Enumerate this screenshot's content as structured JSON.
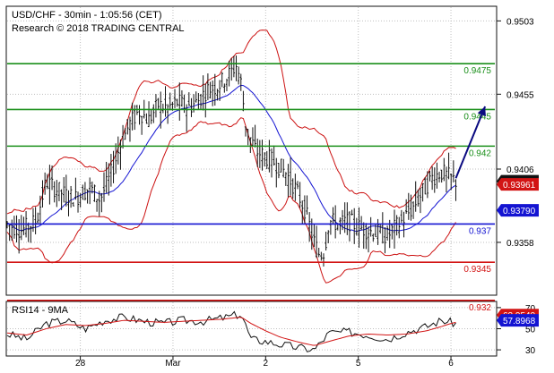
{
  "header": {
    "line1": "USD/CHF - 30min - 1:05:56 (CET)",
    "line2": "Research © 2018 TRADING CENTRAL"
  },
  "chart_data": [
    {
      "type": "candlestick",
      "title": "USD/CHF - 30min - 1:05:56 (CET)",
      "ylim": [
        0.9324,
        0.9512
      ],
      "y_ticks": [
        "0.9503",
        "0.9455",
        "0.9406",
        "0.9358"
      ],
      "x_tick_labels": [
        "28",
        "Mar",
        "2",
        "5",
        "6"
      ],
      "x_ticks": [
        15,
        34,
        53,
        72,
        91
      ],
      "x_range": [
        0,
        100
      ],
      "grid": true,
      "price_path": [
        [
          0,
          0.937
        ],
        [
          3,
          0.9366
        ],
        [
          6,
          0.9372
        ],
        [
          8,
          0.9398
        ],
        [
          10,
          0.9393
        ],
        [
          12,
          0.9389
        ],
        [
          14,
          0.9387
        ],
        [
          17,
          0.9394
        ],
        [
          19,
          0.9386
        ],
        [
          21,
          0.94
        ],
        [
          23,
          0.942
        ],
        [
          25,
          0.9435
        ],
        [
          27,
          0.9444
        ],
        [
          29,
          0.9438
        ],
        [
          31,
          0.9448
        ],
        [
          33,
          0.9446
        ],
        [
          35,
          0.945
        ],
        [
          37,
          0.9446
        ],
        [
          39,
          0.945
        ],
        [
          41,
          0.9458
        ],
        [
          43,
          0.946
        ],
        [
          45,
          0.9466
        ],
        [
          47,
          0.9474
        ],
        [
          48,
          0.9462
        ],
        [
          49,
          0.9432
        ],
        [
          51,
          0.9418
        ],
        [
          53,
          0.9414
        ],
        [
          55,
          0.941
        ],
        [
          57,
          0.9404
        ],
        [
          59,
          0.9394
        ],
        [
          61,
          0.938
        ],
        [
          63,
          0.9358
        ],
        [
          64,
          0.935
        ],
        [
          65,
          0.9352
        ],
        [
          66,
          0.9372
        ],
        [
          68,
          0.937
        ],
        [
          70,
          0.9372
        ],
        [
          72,
          0.9368
        ],
        [
          74,
          0.9366
        ],
        [
          76,
          0.9364
        ],
        [
          78,
          0.9362
        ],
        [
          79,
          0.9366
        ],
        [
          81,
          0.9372
        ],
        [
          83,
          0.938
        ],
        [
          85,
          0.939
        ],
        [
          87,
          0.94
        ],
        [
          89,
          0.9404
        ],
        [
          91,
          0.94
        ],
        [
          92,
          0.9398
        ]
      ],
      "projection": {
        "from": [
          92,
          0.94
        ],
        "to": [
          98,
          0.9447
        ]
      },
      "levels": [
        {
          "label": "0.9475",
          "value": 0.9475,
          "color": "#1a8f1a"
        },
        {
          "label": "0.9445",
          "value": 0.9445,
          "color": "#1a8f1a"
        },
        {
          "label": "0.942",
          "value": 0.9421,
          "color": "#1a8f1a"
        },
        {
          "label": "0.937",
          "value": 0.937,
          "color": "#1414d2"
        },
        {
          "label": "0.9345",
          "value": 0.9345,
          "color": "#d21414"
        },
        {
          "label": "0.932",
          "value": 0.932,
          "color": "#d21414"
        }
      ],
      "price_badges": [
        {
          "label": "0.93981",
          "value": 0.9398,
          "color": "#111111"
        },
        {
          "label": "0.93961",
          "value": 0.9396,
          "color": "#d21414"
        },
        {
          "label": "0.93790",
          "value": 0.9379,
          "color": "#1414d2"
        }
      ]
    },
    {
      "type": "line",
      "title": "RSI14 - 9MA",
      "ylim": [
        25,
        75
      ],
      "y_ticks": [
        "70",
        "50",
        "30"
      ],
      "series": [
        {
          "name": "RSI14",
          "color": "#111111",
          "values": [
            [
              0,
              45
            ],
            [
              4,
              40
            ],
            [
              8,
              55
            ],
            [
              12,
              58
            ],
            [
              16,
              50
            ],
            [
              20,
              58
            ],
            [
              24,
              61
            ],
            [
              28,
              57
            ],
            [
              32,
              55
            ],
            [
              36,
              58
            ],
            [
              40,
              57
            ],
            [
              44,
              60
            ],
            [
              48,
              64
            ],
            [
              50,
              40
            ],
            [
              53,
              38
            ],
            [
              56,
              35
            ],
            [
              60,
              32
            ],
            [
              63,
              30
            ],
            [
              66,
              46
            ],
            [
              70,
              47
            ],
            [
              74,
              44
            ],
            [
              78,
              40
            ],
            [
              82,
              47
            ],
            [
              86,
              52
            ],
            [
              89,
              58
            ],
            [
              91,
              56
            ],
            [
              92,
              55
            ]
          ]
        },
        {
          "name": "9MA",
          "color": "#d21414",
          "values": [
            [
              0,
              46
            ],
            [
              4,
              44
            ],
            [
              8,
              50
            ],
            [
              12,
              54
            ],
            [
              16,
              53
            ],
            [
              20,
              55
            ],
            [
              24,
              58
            ],
            [
              28,
              57
            ],
            [
              32,
              56
            ],
            [
              36,
              57
            ],
            [
              40,
              58
            ],
            [
              44,
              59
            ],
            [
              48,
              61
            ],
            [
              50,
              55
            ],
            [
              53,
              48
            ],
            [
              56,
              42
            ],
            [
              60,
              37
            ],
            [
              63,
              34
            ],
            [
              66,
              38
            ],
            [
              70,
              43
            ],
            [
              74,
              45
            ],
            [
              78,
              44
            ],
            [
              82,
              45
            ],
            [
              86,
              48
            ],
            [
              89,
              52
            ],
            [
              91,
              55
            ],
            [
              92,
              56
            ]
          ]
        }
      ],
      "badges": [
        {
          "label": "62.9549",
          "value": 62.95,
          "color": "#d21414"
        },
        {
          "label": "57.8968",
          "value": 57.9,
          "color": "#1414d2"
        }
      ]
    }
  ]
}
